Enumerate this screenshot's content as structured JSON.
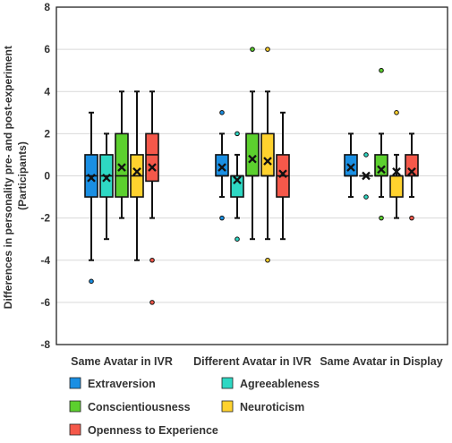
{
  "chart_data": {
    "type": "box",
    "ylabel_line1": "Differences in personality pre- and post-experiment",
    "ylabel_line2": "(Participants)",
    "xlabel": "",
    "ylim": [
      -8,
      8
    ],
    "yticks": [
      -8,
      -6,
      -4,
      -2,
      0,
      2,
      4,
      6,
      8
    ],
    "grid": "horizontal",
    "legend_position": "bottom",
    "categories": [
      "Same Avatar in IVR",
      "Different Avatar in IVR",
      "Same Avatar in Display"
    ],
    "series": [
      {
        "name": "Extraversion",
        "color": "#1a8fe3",
        "boxes": [
          {
            "q1": -1,
            "median": 0,
            "q3": 1,
            "whisker_low": -4,
            "whisker_high": 3,
            "mean": -0.1,
            "outliers": [
              -5
            ]
          },
          {
            "q1": 0,
            "median": 0,
            "q3": 1,
            "whisker_low": -1,
            "whisker_high": 2,
            "mean": 0.4,
            "outliers": [
              3,
              -2
            ]
          },
          {
            "q1": 0,
            "median": 0,
            "q3": 1,
            "whisker_low": -1,
            "whisker_high": 2,
            "mean": 0.4,
            "outliers": []
          }
        ]
      },
      {
        "name": "Agreeableness",
        "color": "#2ed8c3",
        "boxes": [
          {
            "q1": -1,
            "median": 0,
            "q3": 1,
            "whisker_low": -3,
            "whisker_high": 2,
            "mean": -0.1,
            "outliers": []
          },
          {
            "q1": -1,
            "median": 0,
            "q3": 0,
            "whisker_low": -2,
            "whisker_high": 1,
            "mean": -0.2,
            "outliers": [
              2,
              -3
            ]
          },
          {
            "q1": 0,
            "median": 0,
            "q3": 0,
            "whisker_low": 0,
            "whisker_high": 0,
            "mean": 0,
            "outliers": [
              1,
              -1
            ]
          }
        ]
      },
      {
        "name": "Conscientiousness",
        "color": "#5cd02e",
        "boxes": [
          {
            "q1": -1,
            "median": 0,
            "q3": 2,
            "whisker_low": -2,
            "whisker_high": 4,
            "mean": 0.4,
            "outliers": []
          },
          {
            "q1": 0,
            "median": 0,
            "q3": 2,
            "whisker_low": -3,
            "whisker_high": 4,
            "mean": 0.8,
            "outliers": [
              6
            ]
          },
          {
            "q1": 0,
            "median": 0,
            "q3": 1,
            "whisker_low": -1,
            "whisker_high": 2,
            "mean": 0.3,
            "outliers": [
              5,
              -2
            ]
          }
        ]
      },
      {
        "name": "Neuroticism",
        "color": "#ffd22e",
        "boxes": [
          {
            "q1": -1,
            "median": 0,
            "q3": 1,
            "whisker_low": -4,
            "whisker_high": 4,
            "mean": 0.2,
            "outliers": []
          },
          {
            "q1": 0,
            "median": 0,
            "q3": 2,
            "whisker_low": -3,
            "whisker_high": 4,
            "mean": 0.7,
            "outliers": [
              6,
              -4
            ]
          },
          {
            "q1": -1,
            "median": 0,
            "q3": 0,
            "whisker_low": -2,
            "whisker_high": 1,
            "mean": 0.2,
            "outliers": [
              3
            ]
          }
        ]
      },
      {
        "name": "Openness to Experience",
        "color": "#f5584a",
        "boxes": [
          {
            "q1": -0.25,
            "median": 1,
            "q3": 2,
            "whisker_low": -2,
            "whisker_high": 4,
            "mean": 0.4,
            "outliers": [
              -4,
              -6
            ]
          },
          {
            "q1": -1,
            "median": 0,
            "q3": 1,
            "whisker_low": -3,
            "whisker_high": 3,
            "mean": 0.1,
            "outliers": []
          },
          {
            "q1": 0,
            "median": 0,
            "q3": 1,
            "whisker_low": -1,
            "whisker_high": 2,
            "mean": 0.2,
            "outliers": [
              -2
            ]
          }
        ]
      }
    ]
  }
}
